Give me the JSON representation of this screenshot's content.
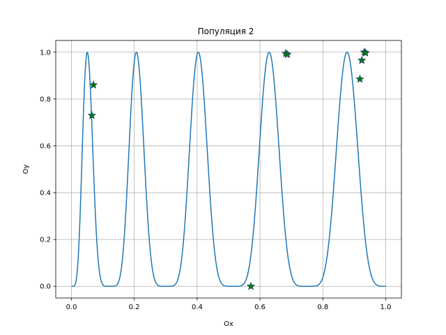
{
  "chart_data": {
    "type": "line",
    "title": "Популяция 2",
    "xlabel": "Ox",
    "ylabel": "Oy",
    "xlim": [
      -0.05,
      1.05
    ],
    "ylim": [
      -0.05,
      1.05
    ],
    "x_ticks": [
      0.0,
      0.2,
      0.4,
      0.6,
      0.8,
      1.0
    ],
    "y_ticks": [
      0.0,
      0.2,
      0.4,
      0.6,
      0.8,
      1.0
    ],
    "x_tick_labels": [
      "0.0",
      "0.2",
      "0.4",
      "0.6",
      "0.8",
      "1.0"
    ],
    "y_tick_labels": [
      "0.0",
      "0.2",
      "0.4",
      "0.6",
      "0.8",
      "1.0"
    ],
    "grid": true,
    "series": [
      {
        "kind": "line",
        "color": "#1f77b4",
        "function": "sin(5*pi*x^0.75 - 0.1)^6",
        "x_range": [
          0,
          1
        ]
      },
      {
        "kind": "scatter",
        "marker": "star",
        "color": "#008000",
        "edge_color": "#1f3f6f",
        "points": [
          {
            "x": 0.065,
            "y": 0.73
          },
          {
            "x": 0.07,
            "y": 0.86
          },
          {
            "x": 0.571,
            "y": 0.0
          },
          {
            "x": 0.682,
            "y": 0.995
          },
          {
            "x": 0.687,
            "y": 0.99
          },
          {
            "x": 0.918,
            "y": 0.885
          },
          {
            "x": 0.924,
            "y": 0.965
          },
          {
            "x": 0.932,
            "y": 1.0
          },
          {
            "x": 0.936,
            "y": 0.997
          }
        ]
      }
    ]
  }
}
